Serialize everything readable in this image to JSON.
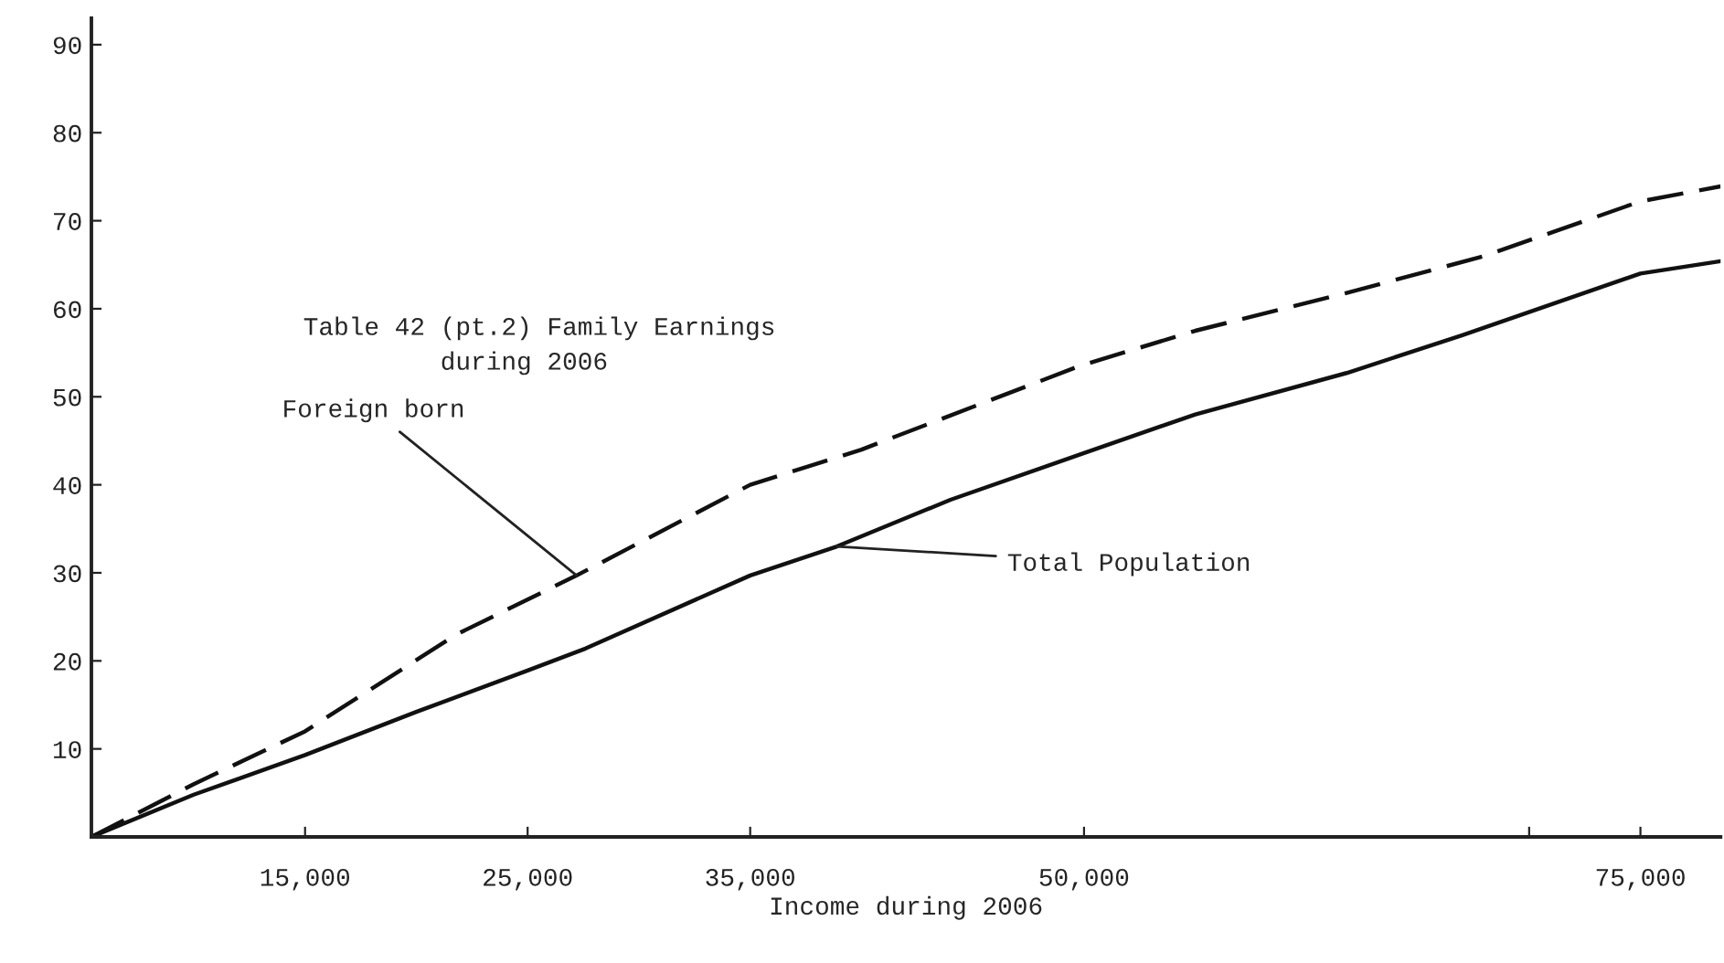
{
  "chart_data": {
    "type": "line",
    "xlabel": "Income during 2006",
    "annotations": [
      "Table 42 (pt.2) Family Earnings\n         during 2006",
      {
        "text": "Foreign born",
        "x": 27200,
        "y": 29.7
      },
      {
        "text": "Total Population",
        "x": 38900,
        "y": 33
      }
    ],
    "series": [
      {
        "color": "#111111",
        "line_style": "dashed",
        "x": [
          5400,
          10000,
          15000,
          21800,
          27200,
          35000,
          40000,
          49800,
          55000,
          61800,
          68000,
          75000,
          78600
        ],
        "values": [
          0,
          6,
          12,
          23,
          29.7,
          40,
          44,
          53.5,
          57.5,
          61.8,
          66,
          72.2,
          73.9
        ]
      },
      {
        "color": "#111111",
        "line_style": "solid",
        "x": [
          5400,
          10000,
          15000,
          20000,
          25000,
          27600,
          35000,
          38900,
          44000,
          50000,
          55000,
          61800,
          67000,
          75000,
          78600
        ],
        "values": [
          0,
          4.8,
          9.3,
          14.2,
          18.9,
          21.4,
          29.7,
          33,
          38.3,
          43.6,
          48,
          52.7,
          57,
          64,
          65.4
        ]
      }
    ],
    "xlim": [
      5400,
      78600
    ],
    "ylim": [
      0,
      93
    ],
    "xticks": [
      {
        "value": 15000,
        "label": "15,000"
      },
      {
        "value": 25000,
        "label": "25,000"
      },
      {
        "value": 35000,
        "label": "35,000"
      },
      {
        "value": 50000,
        "label": "50,000"
      },
      {
        "value": 70000,
        "label": null
      },
      {
        "value": 75000,
        "label": "75,000"
      }
    ],
    "yticks": [
      10,
      20,
      30,
      40,
      50,
      60,
      70,
      80,
      90
    ],
    "grid": false,
    "legend": false
  }
}
